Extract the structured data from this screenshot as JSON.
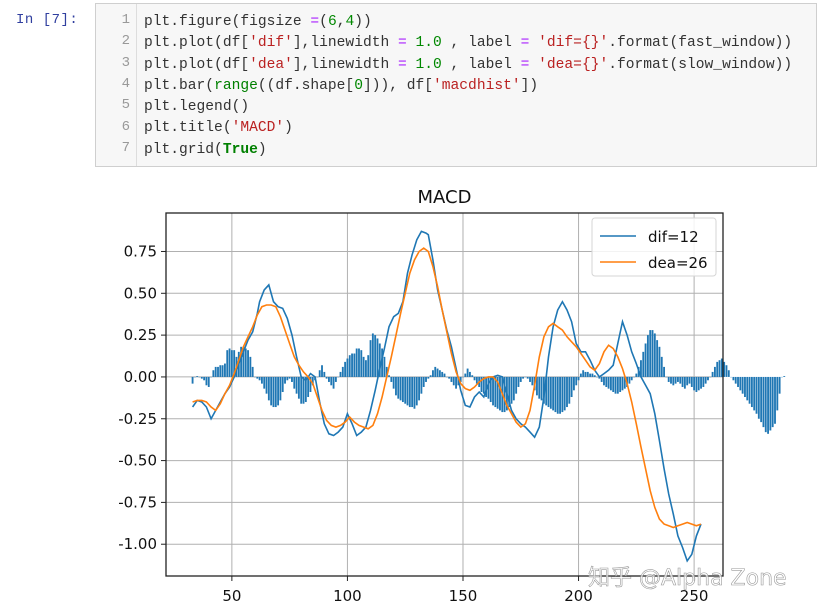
{
  "cell": {
    "prompt": "In  [7]:",
    "line_numbers": [
      "1",
      "2",
      "3",
      "4",
      "5",
      "6",
      "7"
    ],
    "code_lines": [
      [
        {
          "t": "plt.figure(figsize ",
          "c": ""
        },
        {
          "t": "=",
          "c": "k-op"
        },
        {
          "t": "(",
          "c": ""
        },
        {
          "t": "6",
          "c": "k-num"
        },
        {
          "t": ",",
          "c": ""
        },
        {
          "t": "4",
          "c": "k-num"
        },
        {
          "t": "))",
          "c": ""
        }
      ],
      [
        {
          "t": "plt.plot(df[",
          "c": ""
        },
        {
          "t": "'dif'",
          "c": "k-str"
        },
        {
          "t": "],linewidth ",
          "c": ""
        },
        {
          "t": "=",
          "c": "k-op"
        },
        {
          "t": " ",
          "c": ""
        },
        {
          "t": "1.0",
          "c": "k-num"
        },
        {
          "t": " , label ",
          "c": ""
        },
        {
          "t": "=",
          "c": "k-op"
        },
        {
          "t": " ",
          "c": ""
        },
        {
          "t": "'dif={}'",
          "c": "k-str"
        },
        {
          "t": ".format(fast_window))",
          "c": ""
        }
      ],
      [
        {
          "t": "plt.plot(df[",
          "c": ""
        },
        {
          "t": "'dea'",
          "c": "k-str"
        },
        {
          "t": "],linewidth ",
          "c": ""
        },
        {
          "t": "=",
          "c": "k-op"
        },
        {
          "t": " ",
          "c": ""
        },
        {
          "t": "1.0",
          "c": "k-num"
        },
        {
          "t": " , label ",
          "c": ""
        },
        {
          "t": "=",
          "c": "k-op"
        },
        {
          "t": " ",
          "c": ""
        },
        {
          "t": "'dea={}'",
          "c": "k-str"
        },
        {
          "t": ".format(slow_window))",
          "c": ""
        }
      ],
      [
        {
          "t": "plt.bar(",
          "c": ""
        },
        {
          "t": "range",
          "c": "k-bi"
        },
        {
          "t": "((df.shape[",
          "c": ""
        },
        {
          "t": "0",
          "c": "k-num"
        },
        {
          "t": "])), df[",
          "c": ""
        },
        {
          "t": "'macdhist'",
          "c": "k-str"
        },
        {
          "t": "])",
          "c": ""
        }
      ],
      [
        {
          "t": "plt.legend()",
          "c": ""
        }
      ],
      [
        {
          "t": "plt.title(",
          "c": ""
        },
        {
          "t": "'MACD'",
          "c": "k-str"
        },
        {
          "t": ")",
          "c": ""
        }
      ],
      [
        {
          "t": "plt.grid(",
          "c": ""
        },
        {
          "t": "True",
          "c": "k-kw"
        },
        {
          "t": ")",
          "c": ""
        }
      ]
    ]
  },
  "colors": {
    "dif": "#1f77b4",
    "dea": "#ff7f0e",
    "hist": "#1f77b4",
    "grid": "#b0b0b0",
    "axes": "#222222"
  },
  "watermark": "知乎 @Alpha Zone",
  "chart_data": {
    "type": "line",
    "title": "MACD",
    "xlabel": "",
    "ylabel": "",
    "xlim": [
      21.5,
      262.5
    ],
    "ylim": [
      -1.19,
      0.98
    ],
    "xticks": [
      50,
      100,
      150,
      200,
      250
    ],
    "yticks": [
      0.75,
      0.5,
      0.25,
      0.0,
      -0.25,
      -0.5,
      -0.75,
      -1.0
    ],
    "ytick_labels": [
      "0.75",
      "0.50",
      "0.25",
      "0.00",
      "-0.25",
      "-0.50",
      "-0.75",
      "-1.00"
    ],
    "grid": true,
    "legend": {
      "position": "upper right",
      "entries": [
        "dif=12",
        "dea=26"
      ]
    },
    "series": [
      {
        "name": "dif=12",
        "kind": "line",
        "x": [
          33,
          35,
          37,
          39,
          41,
          43,
          45,
          47,
          49,
          51,
          53,
          55,
          57,
          59,
          61,
          62,
          64,
          66,
          68,
          70,
          72,
          74,
          76,
          78,
          80,
          82,
          84,
          86,
          88,
          90,
          92,
          94,
          96,
          98,
          100,
          102,
          104,
          106,
          108,
          110,
          112,
          114,
          116,
          118,
          120,
          122,
          124,
          126,
          128,
          130,
          132,
          134,
          135,
          137,
          139,
          141,
          143,
          145,
          147,
          149,
          151,
          153,
          155,
          157,
          159,
          161,
          163,
          165,
          167,
          169,
          171,
          173,
          175,
          177,
          179,
          181,
          183,
          185,
          187,
          189,
          191,
          193,
          195,
          197,
          199,
          201,
          203,
          205,
          207,
          209,
          211,
          213,
          215,
          217,
          219,
          221,
          223,
          225,
          227,
          229,
          231,
          233,
          235,
          237,
          239,
          241,
          243,
          245,
          247,
          249,
          251,
          253
        ],
        "y": [
          -0.18,
          -0.14,
          -0.15,
          -0.18,
          -0.25,
          -0.2,
          -0.15,
          -0.1,
          -0.06,
          0.0,
          0.08,
          0.15,
          0.22,
          0.27,
          0.38,
          0.45,
          0.52,
          0.55,
          0.45,
          0.42,
          0.41,
          0.35,
          0.25,
          0.12,
          0.0,
          -0.02,
          0.02,
          0.0,
          -0.15,
          -0.28,
          -0.34,
          -0.35,
          -0.33,
          -0.3,
          -0.22,
          -0.28,
          -0.35,
          -0.33,
          -0.3,
          -0.2,
          -0.08,
          0.05,
          0.17,
          0.3,
          0.36,
          0.38,
          0.45,
          0.62,
          0.73,
          0.82,
          0.87,
          0.86,
          0.85,
          0.7,
          0.52,
          0.4,
          0.28,
          0.18,
          0.05,
          -0.08,
          -0.17,
          -0.18,
          -0.12,
          -0.09,
          -0.12,
          -0.04,
          0.0,
          0.01,
          0.0,
          -0.1,
          -0.2,
          -0.25,
          -0.28,
          -0.3,
          -0.33,
          -0.36,
          -0.3,
          -0.12,
          0.12,
          0.3,
          0.4,
          0.45,
          0.4,
          0.33,
          0.2,
          0.15,
          0.15,
          0.1,
          0.04,
          0.0,
          0.02,
          0.04,
          0.07,
          0.2,
          0.33,
          0.25,
          0.15,
          0.08,
          0.0,
          -0.05,
          -0.1,
          -0.22,
          -0.38,
          -0.55,
          -0.7,
          -0.82,
          -0.95,
          -1.02,
          -1.1,
          -1.06,
          -0.95,
          -0.88
        ]
      },
      {
        "name": "dea=26",
        "kind": "line",
        "x": [
          33,
          35,
          37,
          39,
          41,
          43,
          45,
          47,
          49,
          51,
          53,
          55,
          57,
          59,
          61,
          63,
          65,
          67,
          69,
          71,
          73,
          75,
          77,
          79,
          81,
          83,
          85,
          87,
          89,
          91,
          93,
          95,
          97,
          99,
          101,
          103,
          105,
          107,
          109,
          111,
          113,
          115,
          117,
          119,
          121,
          123,
          125,
          127,
          129,
          131,
          133,
          135,
          137,
          139,
          141,
          143,
          145,
          147,
          149,
          151,
          153,
          155,
          157,
          159,
          161,
          163,
          165,
          167,
          169,
          171,
          173,
          175,
          177,
          179,
          181,
          183,
          185,
          187,
          189,
          191,
          193,
          195,
          197,
          199,
          201,
          203,
          205,
          207,
          209,
          211,
          213,
          215,
          217,
          219,
          221,
          223,
          225,
          227,
          229,
          231,
          233,
          235,
          237,
          239,
          241,
          243,
          245,
          247,
          249,
          251,
          253
        ],
        "y": [
          -0.15,
          -0.14,
          -0.14,
          -0.15,
          -0.18,
          -0.2,
          -0.16,
          -0.1,
          -0.05,
          0.02,
          0.1,
          0.18,
          0.24,
          0.3,
          0.37,
          0.42,
          0.43,
          0.43,
          0.42,
          0.36,
          0.28,
          0.2,
          0.12,
          0.07,
          0.03,
          0.0,
          -0.04,
          -0.12,
          -0.2,
          -0.26,
          -0.29,
          -0.3,
          -0.29,
          -0.27,
          -0.24,
          -0.27,
          -0.29,
          -0.3,
          -0.31,
          -0.29,
          -0.22,
          -0.12,
          0.0,
          0.12,
          0.25,
          0.38,
          0.5,
          0.62,
          0.7,
          0.75,
          0.77,
          0.75,
          0.66,
          0.54,
          0.4,
          0.27,
          0.14,
          0.03,
          -0.04,
          -0.07,
          -0.08,
          -0.06,
          -0.03,
          -0.01,
          0.0,
          0.0,
          -0.03,
          -0.1,
          -0.17,
          -0.22,
          -0.27,
          -0.3,
          -0.28,
          -0.2,
          -0.05,
          0.12,
          0.24,
          0.3,
          0.32,
          0.3,
          0.28,
          0.24,
          0.21,
          0.18,
          0.14,
          0.1,
          0.06,
          0.04,
          0.08,
          0.15,
          0.19,
          0.17,
          0.12,
          0.05,
          -0.04,
          -0.15,
          -0.28,
          -0.42,
          -0.55,
          -0.68,
          -0.78,
          -0.85,
          -0.88,
          -0.89,
          -0.9,
          -0.89,
          -0.88,
          -0.87,
          -0.88,
          -0.89,
          -0.88
        ]
      },
      {
        "name": "macdhist",
        "kind": "bar",
        "x_start": 33,
        "values": [
          -0.04,
          0.0,
          0.005,
          0.0,
          -0.01,
          -0.02,
          -0.05,
          -0.06,
          0.0,
          0.04,
          0.06,
          0.06,
          0.07,
          0.07,
          0.08,
          0.16,
          0.17,
          0.16,
          0.16,
          0.12,
          0.15,
          0.18,
          0.18,
          0.17,
          0.16,
          0.12,
          0.06,
          0.0,
          -0.01,
          -0.02,
          -0.04,
          -0.07,
          -0.1,
          -0.14,
          -0.17,
          -0.18,
          -0.18,
          -0.17,
          -0.14,
          -0.09,
          -0.04,
          -0.02,
          -0.01,
          -0.03,
          -0.07,
          -0.1,
          -0.13,
          -0.16,
          -0.16,
          -0.15,
          -0.12,
          -0.09,
          -0.05,
          -0.02,
          0.0,
          0.04,
          0.07,
          0.03,
          -0.01,
          -0.03,
          -0.05,
          -0.07,
          -0.03,
          0.0,
          0.03,
          0.06,
          0.09,
          0.11,
          0.13,
          0.14,
          0.14,
          0.17,
          0.17,
          0.16,
          0.12,
          0.1,
          0.13,
          0.22,
          0.26,
          0.25,
          0.23,
          0.2,
          0.17,
          0.12,
          0.06,
          0.01,
          -0.03,
          -0.07,
          -0.11,
          -0.13,
          -0.14,
          -0.15,
          -0.16,
          -0.17,
          -0.18,
          -0.18,
          -0.19,
          -0.17,
          -0.14,
          -0.1,
          -0.06,
          -0.03,
          -0.01,
          0.01,
          0.04,
          0.06,
          0.05,
          0.04,
          0.03,
          0.02,
          0.0,
          -0.01,
          -0.03,
          -0.05,
          -0.07,
          -0.05,
          -0.03,
          0.0,
          0.02,
          0.05,
          0.03,
          0.01,
          -0.02,
          -0.04,
          -0.06,
          -0.09,
          -0.1,
          -0.12,
          -0.13,
          -0.15,
          -0.17,
          -0.18,
          -0.19,
          -0.2,
          -0.21,
          -0.21,
          -0.2,
          -0.18,
          -0.16,
          -0.14,
          -0.1,
          -0.06,
          -0.03,
          -0.01,
          0.0,
          -0.01,
          -0.03,
          -0.05,
          -0.08,
          -0.11,
          -0.13,
          -0.14,
          -0.16,
          -0.17,
          -0.18,
          -0.19,
          -0.2,
          -0.21,
          -0.22,
          -0.22,
          -0.21,
          -0.2,
          -0.18,
          -0.16,
          -0.12,
          -0.08,
          -0.05,
          -0.02,
          0.02,
          0.04,
          0.03,
          0.03,
          0.02,
          0.02,
          0.01,
          0.0,
          -0.01,
          -0.03,
          -0.05,
          -0.06,
          -0.07,
          -0.08,
          -0.09,
          -0.1,
          -0.1,
          -0.09,
          -0.08,
          -0.07,
          -0.06,
          -0.04,
          -0.02,
          0.0,
          0.02,
          0.06,
          0.1,
          0.15,
          0.2,
          0.25,
          0.28,
          0.28,
          0.26,
          0.22,
          0.18,
          0.12,
          0.06,
          0.0,
          -0.03,
          -0.04,
          -0.05,
          -0.04,
          -0.03,
          -0.04,
          -0.06,
          -0.07,
          -0.05,
          -0.04,
          -0.06,
          -0.08,
          -0.09,
          -0.08,
          -0.07,
          -0.06,
          -0.04,
          -0.02,
          0.0,
          0.03,
          0.06,
          0.09,
          0.1,
          0.11,
          0.09,
          0.07,
          0.04,
          0.0,
          -0.02,
          -0.04,
          -0.06,
          -0.08,
          -0.1,
          -0.12,
          -0.14,
          -0.16,
          -0.18,
          -0.2,
          -0.22,
          -0.25,
          -0.27,
          -0.3,
          -0.33,
          -0.34,
          -0.32,
          -0.3,
          -0.28,
          -0.2,
          -0.1,
          0.0,
          0.005
        ]
      }
    ]
  }
}
